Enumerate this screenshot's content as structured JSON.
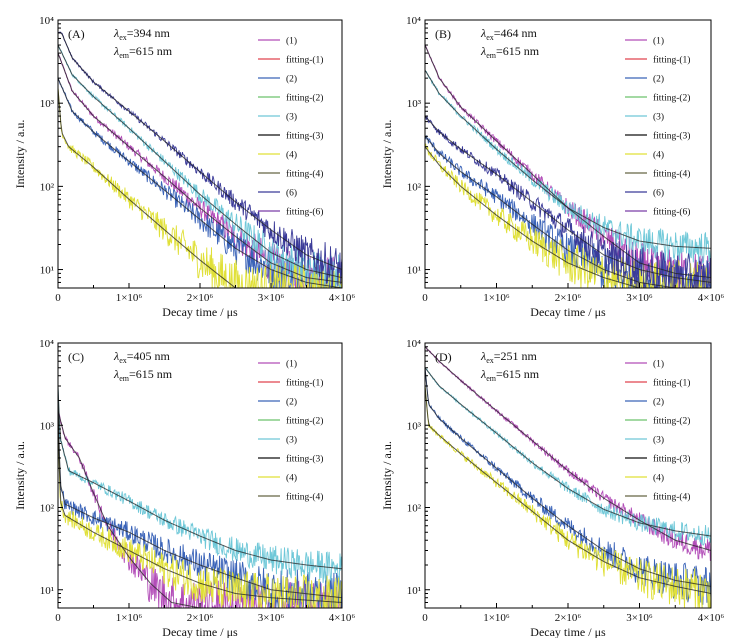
{
  "figure": {
    "xlabel": "Decay time / μs",
    "ylabel": "Intensity / a.u.",
    "x_tick_labels": [
      "0",
      "1×10⁶",
      "2×10⁶",
      "3×10⁶",
      "4×10⁶"
    ],
    "y_tick_labels": [
      "10¹",
      "10²",
      "10³",
      "10⁴"
    ]
  },
  "chart_data": [
    {
      "type": "line",
      "panel_label": "(A)",
      "annotation_ex": "=394 nm",
      "annotation_em": "=615 nm",
      "xlabel": "Decay time / μs",
      "ylabel": "Intensity / a.u.",
      "xlim": [
        0,
        4000000
      ],
      "ylim": [
        6,
        10000
      ],
      "y_scale": "log",
      "legend_position": "top-right",
      "legend": [
        "(1)",
        "fitting-(1)",
        "(2)",
        "fitting-(2)",
        "(3)",
        "fitting-(3)",
        "(4)",
        "fitting-(4)",
        "(6)",
        "fitting-(6)"
      ],
      "series": [
        {
          "name": "(1)",
          "color": "#b24db8",
          "x": [
            0,
            200000,
            500000,
            1000000,
            1500000,
            2000000,
            2500000,
            3000000,
            3500000,
            4000000
          ],
          "y": [
            4000,
            1400,
            700,
            300,
            130,
            55,
            25,
            12,
            8,
            7
          ]
        },
        {
          "name": "(2)",
          "color": "#3a63b8",
          "x": [
            0,
            200000,
            500000,
            1000000,
            1500000,
            2000000,
            2500000,
            3000000,
            3500000,
            4000000
          ],
          "y": [
            2000,
            800,
            450,
            200,
            90,
            40,
            18,
            10,
            7,
            6
          ]
        },
        {
          "name": "(3)",
          "color": "#6fc8d8",
          "x": [
            0,
            200000,
            500000,
            1000000,
            1500000,
            2000000,
            2500000,
            3000000,
            3500000,
            4000000
          ],
          "y": [
            5000,
            2200,
            1200,
            500,
            200,
            80,
            35,
            16,
            10,
            8
          ]
        },
        {
          "name": "(4)",
          "color": "#e0e038",
          "x": [
            0,
            50000,
            150000,
            500000,
            1000000,
            1500000,
            2000000,
            2500000,
            3000000,
            3500000,
            4000000
          ],
          "y": [
            1500,
            450,
            300,
            170,
            70,
            30,
            13,
            6,
            5,
            5,
            5
          ]
        },
        {
          "name": "(6)",
          "color": "#3b3b99",
          "x": [
            0,
            50000,
            200000,
            500000,
            1000000,
            1500000,
            2000000,
            2500000,
            3000000,
            3500000,
            4000000
          ],
          "y": [
            7000,
            7000,
            3500,
            1800,
            800,
            350,
            150,
            65,
            30,
            15,
            10
          ]
        }
      ]
    },
    {
      "type": "line",
      "panel_label": "(B)",
      "annotation_ex": "=464 nm",
      "annotation_em": "=615 nm",
      "xlabel": "Decay time / μs",
      "ylabel": "Intensity / a.u.",
      "xlim": [
        0,
        4000000
      ],
      "ylim": [
        6,
        10000
      ],
      "y_scale": "log",
      "legend_position": "top-right",
      "legend": [
        "(1)",
        "fitting-(1)",
        "(2)",
        "fitting-(2)",
        "(3)",
        "fitting-(3)",
        "(4)",
        "fitting-(4)",
        "(6)",
        "fitting-(6)"
      ],
      "series": [
        {
          "name": "(1)",
          "color": "#b24db8",
          "x": [
            0,
            200000,
            500000,
            1000000,
            1500000,
            2000000,
            2500000,
            3000000,
            3500000,
            4000000
          ],
          "y": [
            5000,
            2000,
            900,
            350,
            140,
            55,
            25,
            12,
            9,
            8
          ]
        },
        {
          "name": "(2)",
          "color": "#3a63b8",
          "x": [
            0,
            200000,
            500000,
            1000000,
            1500000,
            2000000,
            2500000,
            3000000,
            3500000,
            4000000
          ],
          "y": [
            400,
            250,
            150,
            75,
            35,
            17,
            10,
            7,
            6,
            6
          ]
        },
        {
          "name": "(3)",
          "color": "#6fc8d8",
          "x": [
            0,
            200000,
            500000,
            1000000,
            1500000,
            2000000,
            2500000,
            3000000,
            3500000,
            4000000
          ],
          "y": [
            2500,
            1300,
            700,
            280,
            120,
            55,
            32,
            22,
            19,
            18
          ]
        },
        {
          "name": "(4)",
          "color": "#e0e038",
          "x": [
            0,
            200000,
            500000,
            1000000,
            1500000,
            2000000,
            2500000,
            3000000,
            3500000,
            4000000
          ],
          "y": [
            300,
            180,
            100,
            45,
            22,
            12,
            8,
            6,
            6,
            6
          ]
        },
        {
          "name": "(6)",
          "color": "#3b3b99",
          "x": [
            0,
            200000,
            500000,
            1000000,
            1500000,
            2000000,
            2500000,
            3000000,
            3500000,
            4000000
          ],
          "y": [
            700,
            450,
            280,
            140,
            65,
            30,
            15,
            10,
            8,
            7
          ]
        }
      ]
    },
    {
      "type": "line",
      "panel_label": "(C)",
      "annotation_ex": "=405 nm",
      "annotation_em": "=615 nm",
      "xlabel": "Decay time / μs",
      "ylabel": "Intensity / a.u.",
      "xlim": [
        0,
        4000000
      ],
      "ylim": [
        6,
        10000
      ],
      "y_scale": "log",
      "legend_position": "top-right",
      "legend": [
        "(1)",
        "fitting-(1)",
        "(2)",
        "fitting-(2)",
        "(3)",
        "fitting-(3)",
        "(4)",
        "fitting-(4)"
      ],
      "series": [
        {
          "name": "(1)",
          "color": "#b24db8",
          "x": [
            0,
            100000,
            300000,
            500000,
            700000,
            1000000,
            1300000,
            1600000,
            2000000,
            3000000,
            4000000
          ],
          "y": [
            1500,
            700,
            400,
            150,
            60,
            25,
            12,
            7,
            6,
            6,
            6
          ]
        },
        {
          "name": "(2)",
          "color": "#3a63b8",
          "x": [
            0,
            30000,
            100000,
            500000,
            1000000,
            1500000,
            2000000,
            2500000,
            3000000,
            4000000
          ],
          "y": [
            2000,
            200,
            110,
            75,
            50,
            30,
            20,
            14,
            10,
            8
          ]
        },
        {
          "name": "(3)",
          "color": "#6fc8d8",
          "x": [
            0,
            30000,
            150000,
            500000,
            1000000,
            1500000,
            2000000,
            2500000,
            3000000,
            3500000,
            4000000
          ],
          "y": [
            3000,
            700,
            280,
            200,
            120,
            70,
            45,
            30,
            23,
            20,
            18
          ]
        },
        {
          "name": "(4)",
          "color": "#e0e038",
          "x": [
            0,
            30000,
            100000,
            500000,
            1000000,
            1500000,
            2000000,
            2500000,
            3000000,
            4000000
          ],
          "y": [
            1500,
            120,
            80,
            50,
            30,
            18,
            12,
            9,
            8,
            7
          ]
        }
      ]
    },
    {
      "type": "line",
      "panel_label": "(D)",
      "annotation_ex": "=251 nm",
      "annotation_em": "=615 nm",
      "xlabel": "Decay time / μs",
      "ylabel": "Intensity / a.u.",
      "xlim": [
        0,
        4000000
      ],
      "ylim": [
        6,
        10000
      ],
      "y_scale": "log",
      "legend_position": "top-right",
      "legend": [
        "(1)",
        "fitting-(1)",
        "(2)",
        "fitting-(2)",
        "(3)",
        "fitting-(3)",
        "(4)",
        "fitting-(4)"
      ],
      "series": [
        {
          "name": "(1)",
          "color": "#b24db8",
          "x": [
            0,
            200000,
            500000,
            1000000,
            1500000,
            2000000,
            2500000,
            3000000,
            3500000,
            4000000
          ],
          "y": [
            9000,
            6000,
            3500,
            1500,
            650,
            280,
            130,
            70,
            40,
            30
          ]
        },
        {
          "name": "(2)",
          "color": "#3a63b8",
          "x": [
            0,
            50000,
            200000,
            500000,
            1000000,
            1500000,
            2000000,
            2500000,
            3000000,
            3500000,
            4000000
          ],
          "y": [
            5000,
            1800,
            1200,
            700,
            300,
            130,
            60,
            30,
            18,
            13,
            11
          ]
        },
        {
          "name": "(3)",
          "color": "#6fc8d8",
          "x": [
            0,
            200000,
            500000,
            1000000,
            1500000,
            2000000,
            2500000,
            3000000,
            3500000,
            4000000
          ],
          "y": [
            5000,
            3000,
            1800,
            800,
            350,
            170,
            95,
            65,
            52,
            45
          ]
        },
        {
          "name": "(4)",
          "color": "#e0e038",
          "x": [
            0,
            50000,
            200000,
            500000,
            1000000,
            1500000,
            2000000,
            2500000,
            3000000,
            3500000,
            4000000
          ],
          "y": [
            3000,
            1000,
            750,
            450,
            200,
            90,
            40,
            22,
            14,
            11,
            9
          ]
        }
      ]
    }
  ],
  "legend_colors": {
    "(1)": "#b24db8",
    "fitting-(1)": "#e0454f",
    "(2)": "#3a63b8",
    "fitting-(2)": "#6cc26c",
    "(3)": "#6fc8d8",
    "fitting-(3)": "#111111",
    "(4)": "#e0e038",
    "fitting-(4)": "#666644",
    "(6)": "#3b3b99",
    "fitting-(6)": "#7a3fa8"
  },
  "fit_color": "#222222"
}
